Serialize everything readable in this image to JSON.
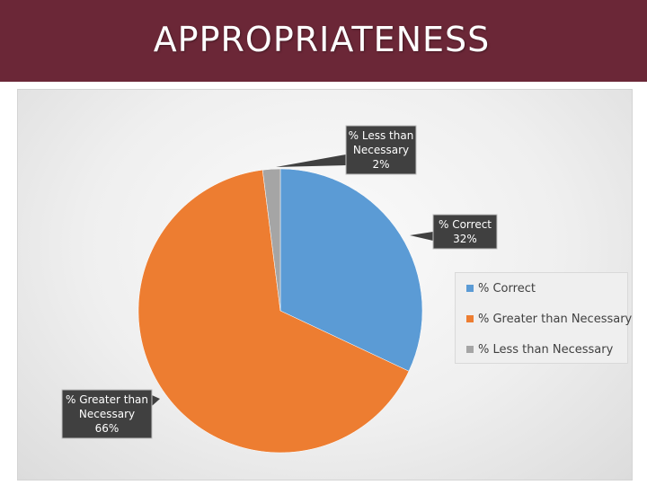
{
  "header": {
    "title": "APPROPRIATENESS"
  },
  "colors": {
    "header_bg": "#6b2737",
    "correct": "#5b9bd5",
    "greater": "#ed7d31",
    "less": "#a5a5a5",
    "callout_bg": "#404040"
  },
  "chart_data": {
    "type": "pie",
    "title": "",
    "categories": [
      "% Correct",
      "% Greater than Necessary",
      "% Less than Necessary"
    ],
    "values": [
      32,
      66,
      2
    ],
    "start": "12 o'clock, clockwise",
    "legend_position": "right",
    "data_labels": [
      {
        "lines": [
          "% Correct",
          "32%"
        ]
      },
      {
        "lines": [
          "% Greater than",
          "Necessary",
          "66%"
        ]
      },
      {
        "lines": [
          "% Less than",
          "Necessary",
          "2%"
        ]
      }
    ]
  },
  "legend": {
    "items": [
      {
        "label": "% Correct",
        "color": "#5b9bd5"
      },
      {
        "label": "% Greater than Necessary",
        "color": "#ed7d31"
      },
      {
        "label": "% Less than Necessary",
        "color": "#a5a5a5"
      }
    ]
  }
}
